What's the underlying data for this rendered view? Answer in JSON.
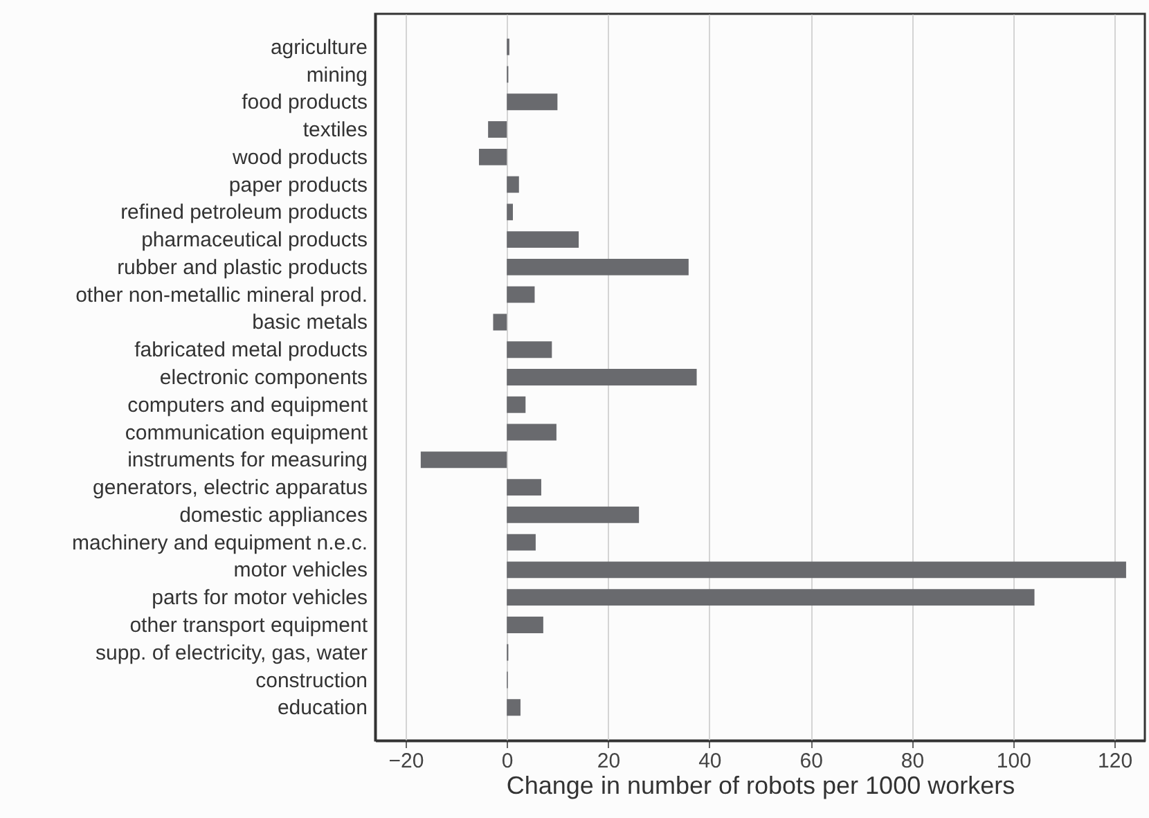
{
  "chart_data": {
    "type": "bar",
    "orientation": "horizontal",
    "xlabel": "Change in number of robots per 1000 workers",
    "categories": [
      "agriculture",
      "mining",
      "food products",
      "textiles",
      "wood products",
      "paper products",
      "refined petroleum products",
      "pharmaceutical products",
      "rubber and plastic products",
      "other non-metallic mineral prod.",
      "basic metals",
      "fabricated metal products",
      "electronic components",
      "computers and equipment",
      "communication equipment",
      "instruments for measuring",
      "generators, electric apparatus",
      "domestic appliances",
      "machinery and equipment n.e.c.",
      "motor vehicles",
      "parts for motor vehicles",
      "other transport equipment",
      "supp. of electricity, gas, water",
      "construction",
      "education"
    ],
    "values": [
      0.5,
      0.3,
      10,
      -3.7,
      -5.5,
      2.4,
      1.2,
      14.2,
      35.9,
      5.5,
      -2.7,
      8.9,
      37.5,
      3.7,
      9.8,
      -17,
      6.8,
      26.1,
      5.7,
      122.3,
      104.2,
      7.2,
      0.3,
      0.2,
      2.7
    ],
    "color": "#696a6e",
    "xlim": [
      -26,
      126
    ],
    "xticks": [
      -20,
      0,
      20,
      40,
      60,
      80,
      100,
      120
    ],
    "grid": "x"
  }
}
